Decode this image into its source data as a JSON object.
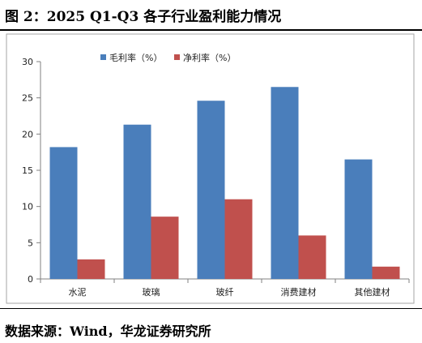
{
  "header": {
    "title": "图 2：2025 Q1-Q3 各子行业盈利能力情况"
  },
  "footer": {
    "source": "数据来源：Wind，华龙证券研究所"
  },
  "colors": {
    "gross_margin": "#4a7ebb",
    "net_margin": "#c0504d",
    "axis": "#808080",
    "border": "#a6a6a6"
  },
  "chart_data": {
    "type": "bar",
    "categories": [
      "水泥",
      "玻璃",
      "玻纤",
      "消费建材",
      "其他建材"
    ],
    "series": [
      {
        "name": "毛利率（%）",
        "values": [
          18.2,
          21.3,
          24.6,
          26.5,
          16.5
        ]
      },
      {
        "name": "净利率（%）",
        "values": [
          2.7,
          8.6,
          11.0,
          6.0,
          1.7
        ]
      }
    ],
    "ylim": [
      0,
      30
    ],
    "yticks": [
      "0",
      "5",
      "10",
      "15",
      "20",
      "25",
      "30"
    ],
    "legend": "top",
    "grid": false
  }
}
